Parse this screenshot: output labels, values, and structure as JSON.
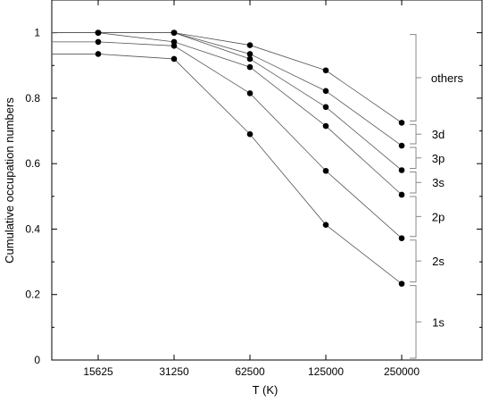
{
  "chart_data": {
    "type": "line",
    "xlabel": "T (K)",
    "ylabel": "Cumulative occupation numbers",
    "x_categories": [
      "15625",
      "31250",
      "62500",
      "125000",
      "250000"
    ],
    "yticks": [
      "0",
      "0.2",
      "0.4",
      "0.6",
      "0.8",
      "1"
    ],
    "ylim": [
      0,
      1.1
    ],
    "series": [
      {
        "values": [
          0.935,
          0.92,
          0.69,
          0.413,
          0.233
        ]
      },
      {
        "values": [
          0.972,
          0.96,
          0.815,
          0.578,
          0.372
        ]
      },
      {
        "values": [
          1.0,
          0.972,
          0.895,
          0.715,
          0.505
        ]
      },
      {
        "values": [
          1.0,
          1.0,
          0.92,
          0.773,
          0.58
        ]
      },
      {
        "values": [
          1.0,
          1.0,
          0.935,
          0.822,
          0.655
        ]
      },
      {
        "values": [
          1.0,
          1.0,
          0.962,
          0.885,
          0.725
        ]
      }
    ],
    "shell_labels": [
      {
        "label": "1s",
        "range": [
          0,
          0.233
        ]
      },
      {
        "label": "2s",
        "range": [
          0.233,
          0.372
        ]
      },
      {
        "label": "2p",
        "range": [
          0.372,
          0.505
        ]
      },
      {
        "label": "3s",
        "range": [
          0.505,
          0.58
        ]
      },
      {
        "label": "3p",
        "range": [
          0.58,
          0.655
        ]
      },
      {
        "label": "3d",
        "range": [
          0.655,
          0.725
        ]
      },
      {
        "label": "others",
        "range": [
          0.725,
          1.0
        ]
      }
    ]
  }
}
